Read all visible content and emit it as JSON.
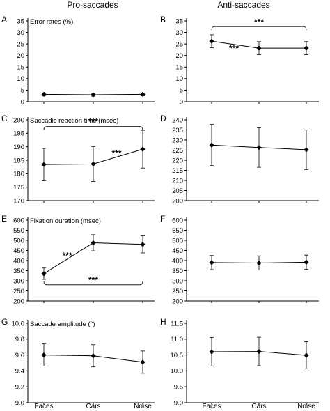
{
  "column_titles": [
    "Pro-saccades",
    "Anti-saccades"
  ],
  "categories": [
    "Faces",
    "Cars",
    "Noise"
  ],
  "chart_data": [
    {
      "panel": "A",
      "type": "line",
      "title": "Error rates (%)",
      "categories": [
        "Faces",
        "Cars",
        "Noise"
      ],
      "values": [
        3.2,
        3.0,
        3.2
      ],
      "errors": [
        0.6,
        0.6,
        0.6
      ],
      "ylim": [
        0,
        35
      ],
      "ytick_step": 5,
      "annotations": []
    },
    {
      "panel": "B",
      "type": "line",
      "title": "",
      "categories": [
        "Faces",
        "Cars",
        "Noise"
      ],
      "values": [
        26.2,
        23.2,
        23.2
      ],
      "errors": [
        2.8,
        2.8,
        2.8
      ],
      "ylim": [
        0,
        35
      ],
      "ytick_step": 5,
      "annotations": [
        {
          "type": "bracket",
          "from": 0,
          "to": 2,
          "at": 32.5,
          "dir": "down",
          "label": "***"
        },
        {
          "type": "text",
          "label": "***",
          "between": [
            0,
            1
          ],
          "at": 21.8
        }
      ]
    },
    {
      "panel": "C",
      "type": "line",
      "title": "Saccadic reaction time (msec)",
      "categories": [
        "Faces",
        "Cars",
        "Noise"
      ],
      "values": [
        183.4,
        183.6,
        189.1
      ],
      "errors": [
        6.0,
        6.5,
        7.0
      ],
      "ylim": [
        170,
        200
      ],
      "ytick_step": 5,
      "annotations": [
        {
          "type": "bracket",
          "from": 0,
          "to": 2,
          "at": 197.5,
          "dir": "down",
          "label": "***"
        },
        {
          "type": "text",
          "label": "***",
          "between": [
            1,
            2
          ],
          "at": 186.5
        }
      ]
    },
    {
      "panel": "D",
      "type": "line",
      "title": "",
      "categories": [
        "Faces",
        "Cars",
        "Noise"
      ],
      "values": [
        227.5,
        226.3,
        225.2
      ],
      "errors": [
        10.2,
        9.8,
        9.8
      ],
      "ylim": [
        200,
        240
      ],
      "ytick_step": 5,
      "annotations": []
    },
    {
      "panel": "E",
      "type": "line",
      "title": "Fixation duration (msec)",
      "categories": [
        "Faces",
        "Cars",
        "Noise"
      ],
      "values": [
        335,
        488,
        480
      ],
      "errors": [
        28,
        40,
        42
      ],
      "ylim": [
        200,
        600
      ],
      "ytick_step": 50,
      "annotations": [
        {
          "type": "text",
          "label": "***",
          "between": [
            0,
            1
          ],
          "at": 410
        },
        {
          "type": "bracket",
          "from": 0,
          "to": 2,
          "at": 280,
          "dir": "up",
          "label": "***"
        }
      ]
    },
    {
      "panel": "F",
      "type": "line",
      "title": "",
      "categories": [
        "Faces",
        "Cars",
        "Noise"
      ],
      "values": [
        390,
        388,
        392
      ],
      "errors": [
        35,
        35,
        35
      ],
      "ylim": [
        200,
        600
      ],
      "ytick_step": 50,
      "annotations": []
    },
    {
      "panel": "G",
      "type": "line",
      "title": "Saccade amplitude (°)",
      "categories": [
        "Faces",
        "Cars",
        "Noise"
      ],
      "values": [
        9.6,
        9.59,
        9.51
      ],
      "errors": [
        0.14,
        0.14,
        0.14
      ],
      "ylim": [
        9.0,
        10.0
      ],
      "ytick_step": 0.2,
      "annotations": []
    },
    {
      "panel": "H",
      "type": "line",
      "title": "",
      "categories": [
        "Faces",
        "Cars",
        "Noise"
      ],
      "values": [
        10.6,
        10.61,
        10.49
      ],
      "errors": [
        0.45,
        0.45,
        0.43
      ],
      "ylim": [
        9.0,
        11.5
      ],
      "ytick_step": 0.5,
      "annotations": []
    }
  ]
}
